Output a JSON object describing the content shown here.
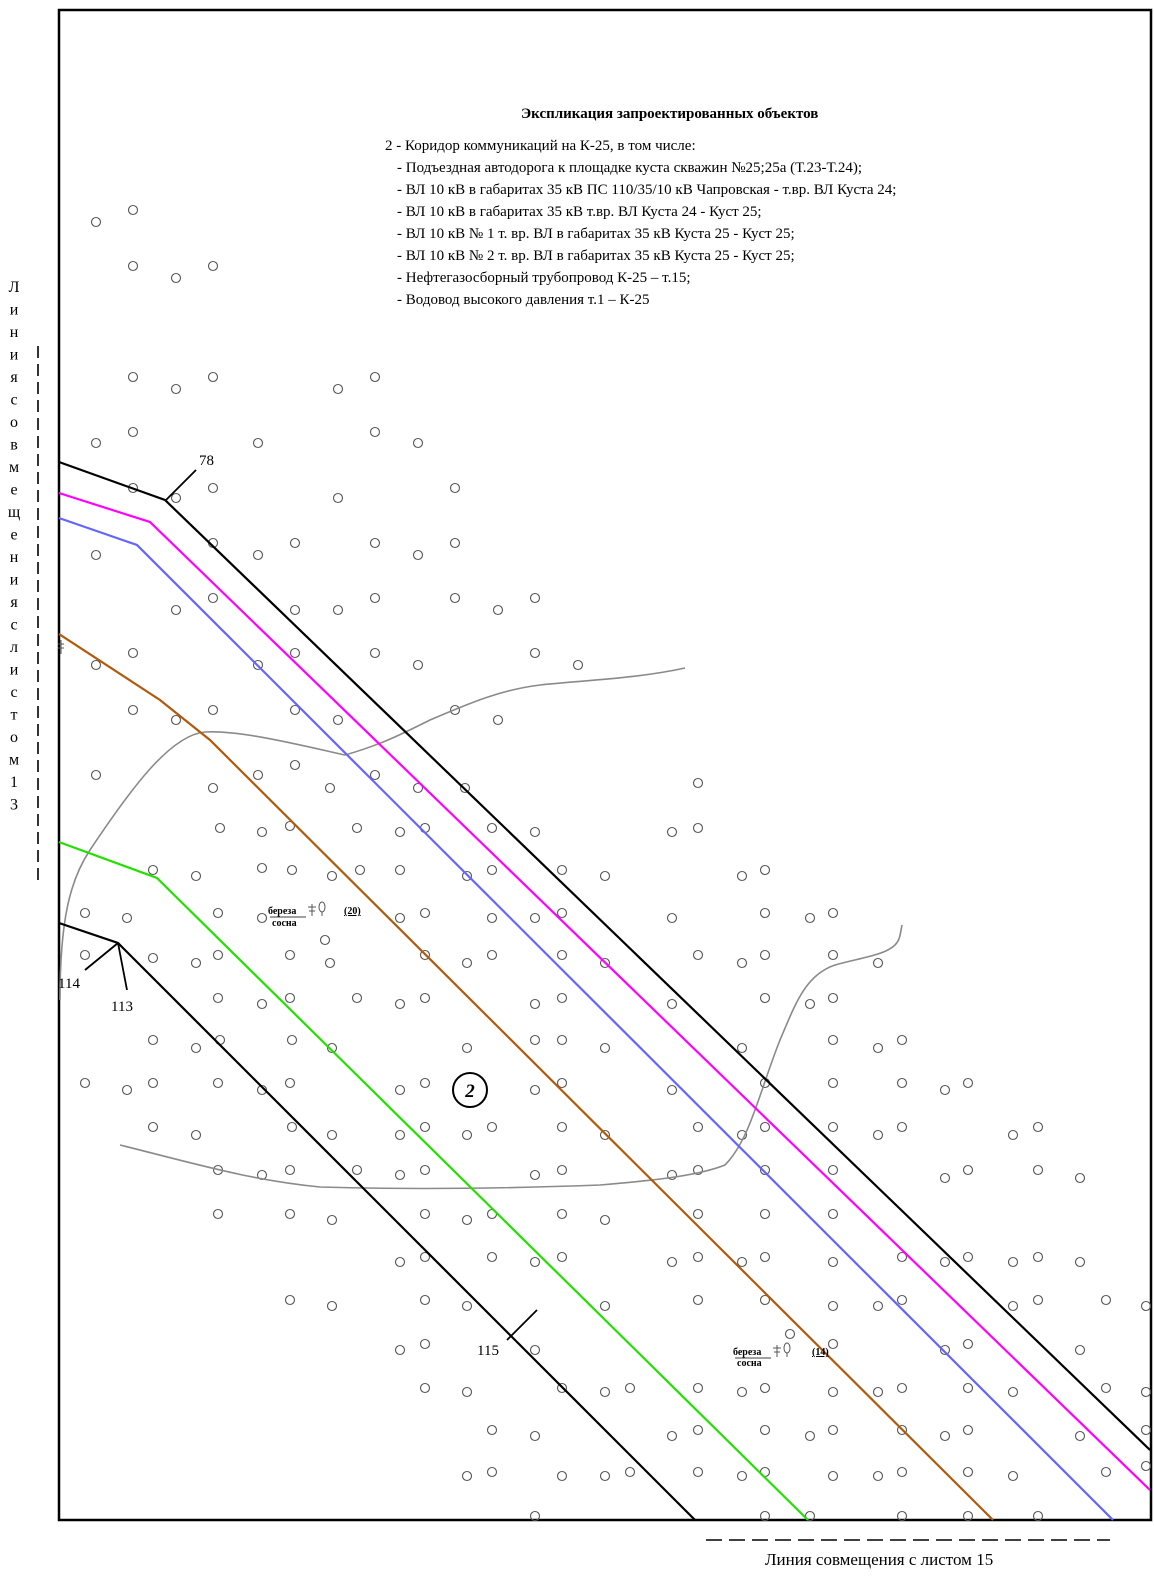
{
  "explication": {
    "title": "Экспликация запроектированных объектов",
    "lines": [
      "2 - Коридор коммуникаций на К-25, в том числе:",
      "- Подъездная автодорога к площадке куста скважин №25;25а (Т.23-Т.24);",
      "- ВЛ 10 кВ в габаритах 35 кВ ПС 110/35/10 кВ Чапровская - т.вр. ВЛ Куста 24;",
      "- ВЛ 10 кВ в габаритах 35 кВ т.вр. ВЛ Куста 24 - Куст 25;",
      "- ВЛ 10 кВ № 1  т. вр. ВЛ в габаритах 35 кВ Куста 25 - Куст 25;",
      "- ВЛ 10 кВ № 2  т. вр. ВЛ в габаритах 35 кВ Куста 25 - Куст 25;",
      "- Нефтегазосборный трубопровод  К-25 – т.15;",
      "- Водовод высокого давления т.1 – К-25"
    ]
  },
  "match_line_left": "Линия совмещения с листом 13",
  "match_line_bottom": "Линия совмещения с листом 15",
  "points": {
    "p78": "78",
    "p114": "114",
    "p113": "113",
    "p115": "115"
  },
  "object_marker": "2",
  "forest_labels": [
    {
      "species_top": "береза",
      "species_bottom": "сосна",
      "height": "(20)"
    },
    {
      "species_top": "береза",
      "species_bottom": "сосна",
      "height": "(14)"
    }
  ],
  "colors": {
    "boundary": "#000000",
    "magenta_line": "#ff00ff",
    "blue_line": "#6464ff",
    "brown_line": "#b05a0a",
    "green_line": "#22e000",
    "contour": "#8a8a8a",
    "tree_symbol": "#555555"
  }
}
